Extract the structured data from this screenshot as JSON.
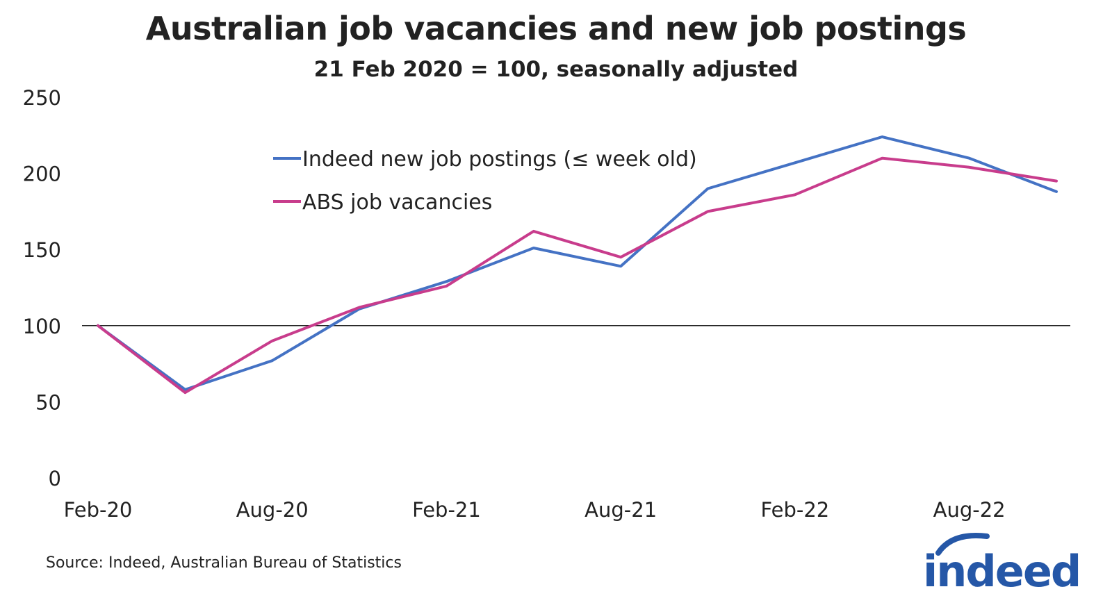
{
  "title": "Australian job vacancies and new job postings",
  "subtitle": "21 Feb 2020 = 100, seasonally adjusted",
  "source": "Source: Indeed, Australian Bureau of Statistics",
  "logo_text": "indeed",
  "colors": {
    "indeed": "#4472C4",
    "abs": "#C83C8C",
    "logo": "#2557A7"
  },
  "chart_data": {
    "type": "line",
    "x": [
      "Feb-20",
      "May-20",
      "Aug-20",
      "Nov-20",
      "Feb-21",
      "May-21",
      "Aug-21",
      "Nov-21",
      "Feb-22",
      "May-22",
      "Aug-22",
      "Nov-22"
    ],
    "x_tick_labels": [
      "Feb-20",
      "Aug-20",
      "Feb-21",
      "Aug-21",
      "Feb-22",
      "Aug-22"
    ],
    "ylim": [
      0,
      250
    ],
    "y_ticks": [
      0,
      50,
      100,
      150,
      200,
      250
    ],
    "reference_line": 100,
    "legend_position": "top-left",
    "series": [
      {
        "name": "Indeed new job postings (≤ week old)",
        "color": "#4472C4",
        "values": [
          100,
          58,
          77,
          111,
          129,
          151,
          139,
          190,
          207,
          224,
          210,
          188
        ]
      },
      {
        "name": "ABS job vacancies",
        "color": "#C83C8C",
        "values": [
          100,
          56,
          90,
          112,
          126,
          162,
          145,
          175,
          186,
          210,
          204,
          195
        ]
      }
    ]
  }
}
